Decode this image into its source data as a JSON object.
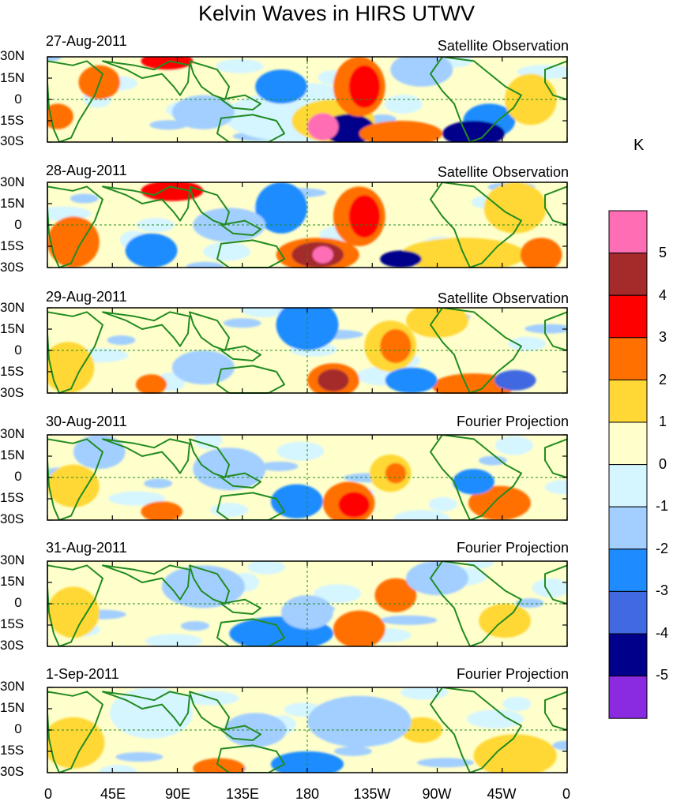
{
  "title": "Kelvin Waves in HIRS UTWV",
  "panels": [
    {
      "date": "27-Aug-2011",
      "source": "Satellite Observation"
    },
    {
      "date": "28-Aug-2011",
      "source": "Satellite Observation"
    },
    {
      "date": "29-Aug-2011",
      "source": "Satellite Observation"
    },
    {
      "date": "30-Aug-2011",
      "source": "Fourier Projection"
    },
    {
      "date": "31-Aug-2011",
      "source": "Fourier Projection"
    },
    {
      "date": "1-Sep-2011",
      "source": "Fourier Projection"
    }
  ],
  "lat_labels": [
    "30N",
    "15N",
    "0",
    "15S",
    "30S"
  ],
  "lon_labels": [
    "0",
    "45E",
    "90E",
    "135E",
    "180",
    "135W",
    "90W",
    "45W",
    "0"
  ],
  "colorbar": {
    "unit": "K",
    "labels": [
      "5",
      "4",
      "3",
      "2",
      "1",
      "0",
      "-1",
      "-2",
      "-3",
      "-4",
      "-5"
    ],
    "colors": [
      "#ff6eb4",
      "#a52a2a",
      "#ff0000",
      "#ff7000",
      "#ffd836",
      "#ffffcc",
      "#d5f5ff",
      "#a2cfff",
      "#1e8cff",
      "#4169e1",
      "#00008b",
      "#8a2be2"
    ]
  },
  "map_colors": {
    "land": "#228B22",
    "grid": "#228B22"
  }
}
